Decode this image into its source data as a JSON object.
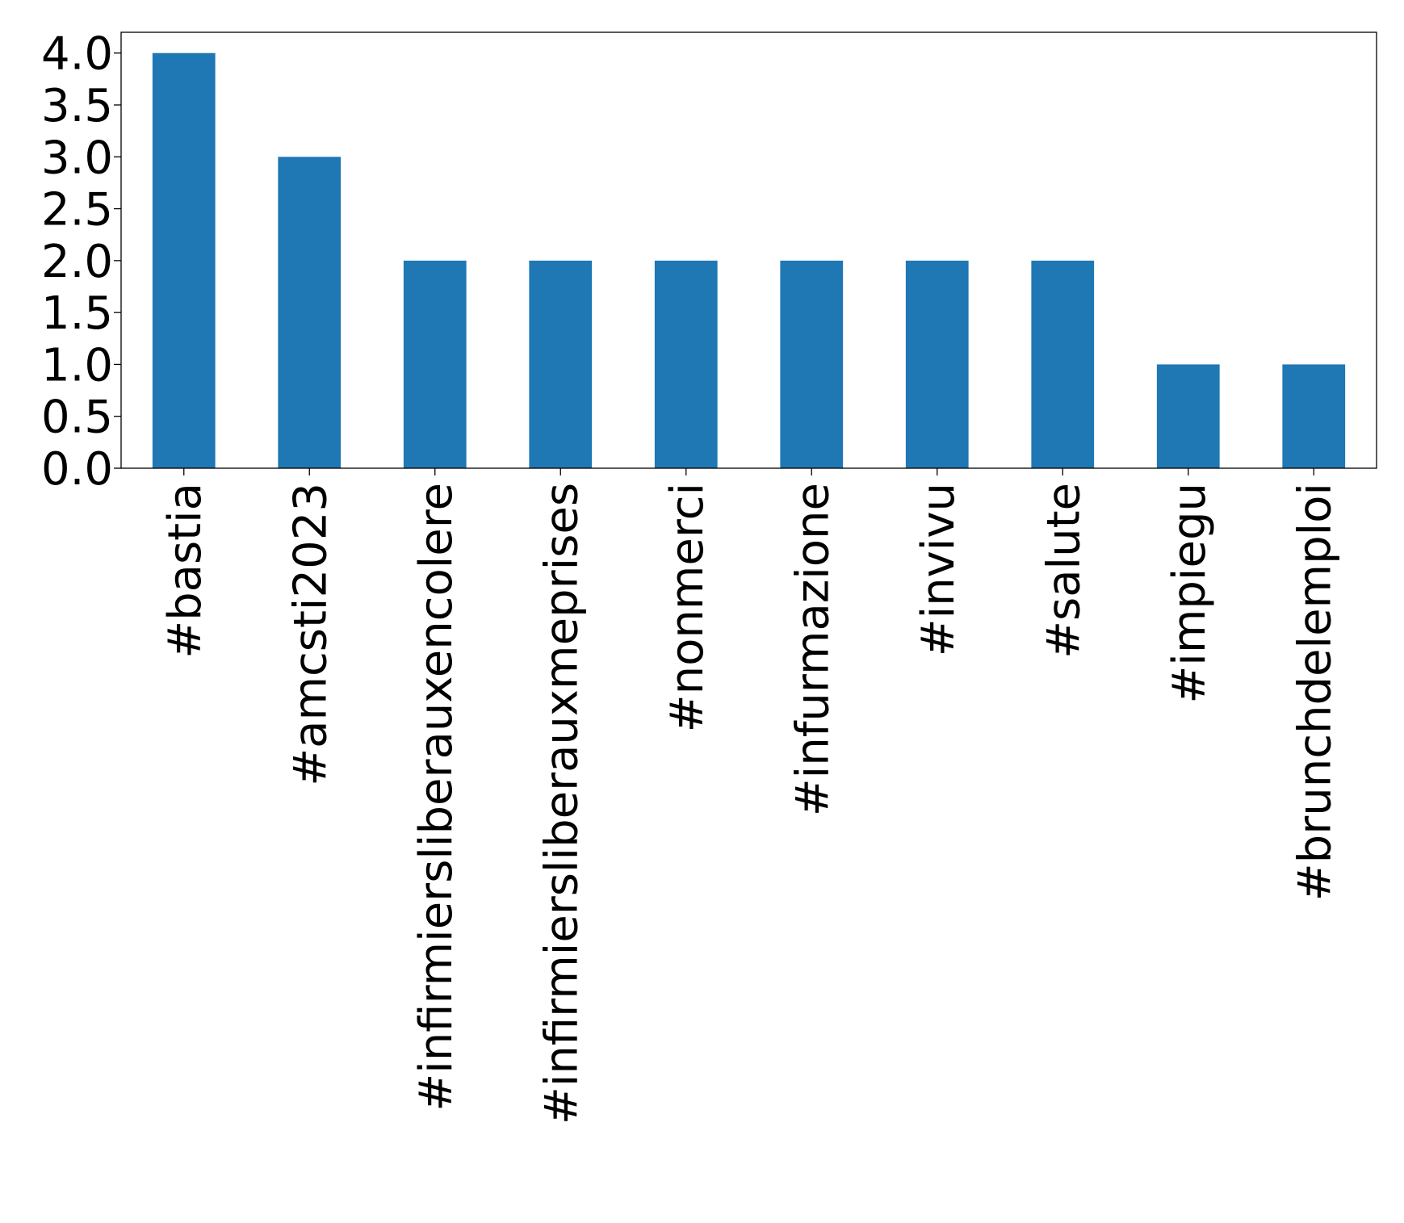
{
  "chart_data": {
    "type": "bar",
    "title": "",
    "xlabel": "",
    "ylabel": "",
    "categories": [
      "#bastia",
      "#amcsti2023",
      "#infirmiersliberauxencolere",
      "#infirmiersliberauxmeprises",
      "#nonmerci",
      "#infurmazione",
      "#invivu",
      "#salute",
      "#impiegu",
      "#brunchdelemploi"
    ],
    "values": [
      4,
      3,
      2,
      2,
      2,
      2,
      2,
      2,
      1,
      1
    ],
    "ylim": [
      0,
      4.2
    ],
    "yticks": [
      "0.0",
      "0.5",
      "1.0",
      "1.5",
      "2.0",
      "2.5",
      "3.0",
      "3.5",
      "4.0"
    ],
    "bar_color": "#1f77b4",
    "grid": false,
    "legend": "none"
  }
}
